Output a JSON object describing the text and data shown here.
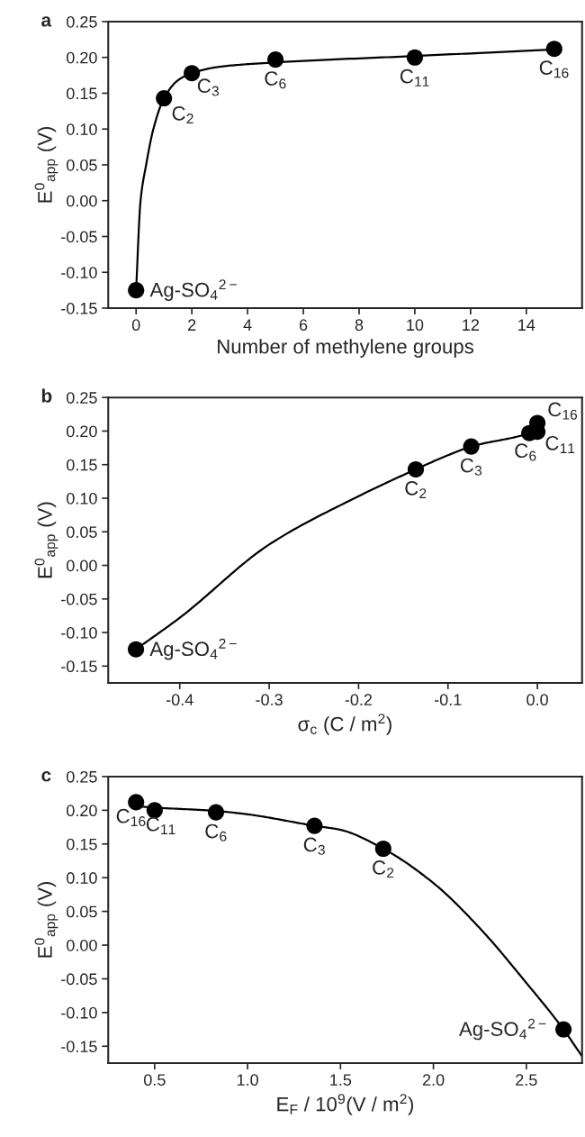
{
  "chart_data": [
    {
      "type": "scatter",
      "title": "a",
      "xlabel": "Number of methylene groups",
      "ylabel": "E$^{0}$$_{app}$ (V)",
      "xlim": [
        -1,
        16
      ],
      "xticks": [
        0,
        2,
        4,
        6,
        8,
        10,
        12,
        14
      ],
      "ylim": [
        -0.15,
        0.25
      ],
      "yticks": [
        {
          "value": -0.15,
          "label": "-0.15"
        },
        {
          "value": -0.1,
          "label": "-0.10"
        },
        {
          "value": -0.05,
          "label": "-0.05"
        },
        {
          "value": 0,
          "label": "0.00"
        },
        {
          "value": 0.05,
          "label": "0.05"
        },
        {
          "value": 0.1,
          "label": "0.10"
        },
        {
          "value": 0.15,
          "label": "0.15"
        },
        {
          "value": 0.2,
          "label": "0.20"
        },
        {
          "value": 0.25,
          "label": "0.25"
        }
      ],
      "marker": "circle",
      "series": [
        {
          "type": "line",
          "marker": "none",
          "color": "#000000",
          "x": [
            0,
            0.16,
            0.36,
            0.62,
            1,
            1.5,
            2,
            3,
            5,
            10,
            15
          ],
          "values": [
            -0.125,
            0.0,
            0.05,
            0.1,
            0.143,
            0.168,
            0.178,
            0.187,
            0.193,
            0.202,
            0.211
          ]
        },
        {
          "color": "#000000",
          "x": [
            0,
            1,
            2,
            5,
            10,
            15
          ],
          "values": [
            -0.125,
            0.143,
            0.178,
            0.197,
            0.2,
            0.212
          ]
        }
      ],
      "annotations": [
        {
          "text": "Ag-SO$_{4}$$^{2−}$",
          "x": 0,
          "y": -0.125
        },
        {
          "text": "C$_{2}$",
          "x": 1,
          "y": 0.143
        },
        {
          "text": "C$_{3}$",
          "x": 2,
          "y": 0.178
        },
        {
          "text": "C$_{6}$",
          "x": 5,
          "y": 0.197
        },
        {
          "text": "C$_{11}$",
          "x": 10,
          "y": 0.2
        },
        {
          "text": "C$_{16}$",
          "x": 15,
          "y": 0.212
        }
      ]
    },
    {
      "type": "scatter",
      "title": "b",
      "xlabel": "σ$_{c}$ (C / m$^{2}$)",
      "ylabel": "E$^{0}$$_{app}$ (V)",
      "xlim": [
        -0.48,
        0.05
      ],
      "xticks": [
        -0.4,
        -0.3,
        -0.2,
        -0.1,
        {
          "value": 0,
          "label": "0.0"
        }
      ],
      "ylim": [
        -0.175,
        0.25
      ],
      "yticks": [
        {
          "value": -0.15,
          "label": "-0.15"
        },
        {
          "value": -0.1,
          "label": "-0.10"
        },
        {
          "value": -0.05,
          "label": "-0.05"
        },
        {
          "value": 0,
          "label": "0.00"
        },
        {
          "value": 0.05,
          "label": "0.05"
        },
        {
          "value": 0.1,
          "label": "0.10"
        },
        {
          "value": 0.15,
          "label": "0.15"
        },
        {
          "value": 0.2,
          "label": "0.20"
        },
        {
          "value": 0.25,
          "label": "0.25"
        }
      ],
      "marker": "circle",
      "series": [
        {
          "type": "line",
          "marker": "none",
          "color": "#000000",
          "x": [
            -0.449,
            -0.4,
            -0.3,
            -0.2,
            -0.136,
            -0.1,
            -0.074,
            -0.009,
            0.0
          ],
          "values": [
            -0.125,
            -0.078,
            0.031,
            0.103,
            0.143,
            0.164,
            0.177,
            0.197,
            0.203
          ]
        },
        {
          "color": "#000000",
          "x": [
            -0.449,
            -0.136,
            -0.074,
            -0.009,
            0.0,
            0.0
          ],
          "values": [
            -0.125,
            0.143,
            0.177,
            0.197,
            0.199,
            0.212
          ]
        }
      ],
      "annotations": [
        {
          "text": "Ag-SO$_{4}$$^{2−}$",
          "x": -0.449,
          "y": -0.125
        },
        {
          "text": "C$_{2}$",
          "x": -0.136,
          "y": 0.143
        },
        {
          "text": "C$_{3}$",
          "x": -0.074,
          "y": 0.177
        },
        {
          "text": "C$_{6}$",
          "x": -0.009,
          "y": 0.197
        },
        {
          "text": "C$_{11}$",
          "x": 0.0,
          "y": 0.199
        },
        {
          "text": "C$_{16}$",
          "x": 0.0,
          "y": 0.212
        }
      ]
    },
    {
      "type": "scatter",
      "title": "c",
      "xlabel": "E$_{F}$ / 10$^{9}$(V / m$^{2}$)",
      "ylabel": "E$^{0}$$_{app}$ (V)",
      "xlim": [
        0.25,
        2.8
      ],
      "xticks": [
        0.5,
        {
          "value": 1,
          "label": "1.0"
        },
        1.5,
        {
          "value": 2,
          "label": "2.0"
        },
        2.5
      ],
      "ylim": [
        -0.175,
        0.25
      ],
      "yticks": [
        {
          "value": -0.15,
          "label": "-0.15"
        },
        {
          "value": -0.1,
          "label": "-0.10"
        },
        {
          "value": -0.05,
          "label": "-0.05"
        },
        {
          "value": 0,
          "label": "0.00"
        },
        {
          "value": 0.05,
          "label": "0.05"
        },
        {
          "value": 0.1,
          "label": "0.10"
        },
        {
          "value": 0.15,
          "label": "0.15"
        },
        {
          "value": 0.2,
          "label": "0.20"
        },
        {
          "value": 0.25,
          "label": "0.25"
        }
      ],
      "marker": "circle",
      "series": [
        {
          "type": "line",
          "marker": "none",
          "color": "#000000",
          "x": [
            0.4,
            0.5,
            0.83,
            1.0,
            1.36,
            1.5,
            1.73,
            2.0,
            2.25,
            2.5,
            2.7,
            2.8
          ],
          "values": [
            0.206,
            0.204,
            0.199,
            0.194,
            0.177,
            0.171,
            0.143,
            0.092,
            0.025,
            -0.056,
            -0.125,
            -0.165
          ]
        },
        {
          "color": "#000000",
          "x": [
            0.4,
            0.5,
            0.83,
            1.36,
            1.73,
            2.7
          ],
          "values": [
            0.212,
            0.2,
            0.197,
            0.177,
            0.143,
            -0.125
          ]
        }
      ],
      "annotations": [
        {
          "text": "C$_{16}$",
          "x": 0.4,
          "y": 0.212
        },
        {
          "text": "C$_{11}$",
          "x": 0.5,
          "y": 0.2
        },
        {
          "text": "C$_{6}$",
          "x": 0.83,
          "y": 0.197
        },
        {
          "text": "C$_{3}$",
          "x": 1.36,
          "y": 0.177
        },
        {
          "text": "C$_{2}$",
          "x": 1.73,
          "y": 0.143
        },
        {
          "text": "Ag-SO$_{4}$$^{2−}$",
          "x": 2.7,
          "y": -0.125
        }
      ]
    }
  ]
}
